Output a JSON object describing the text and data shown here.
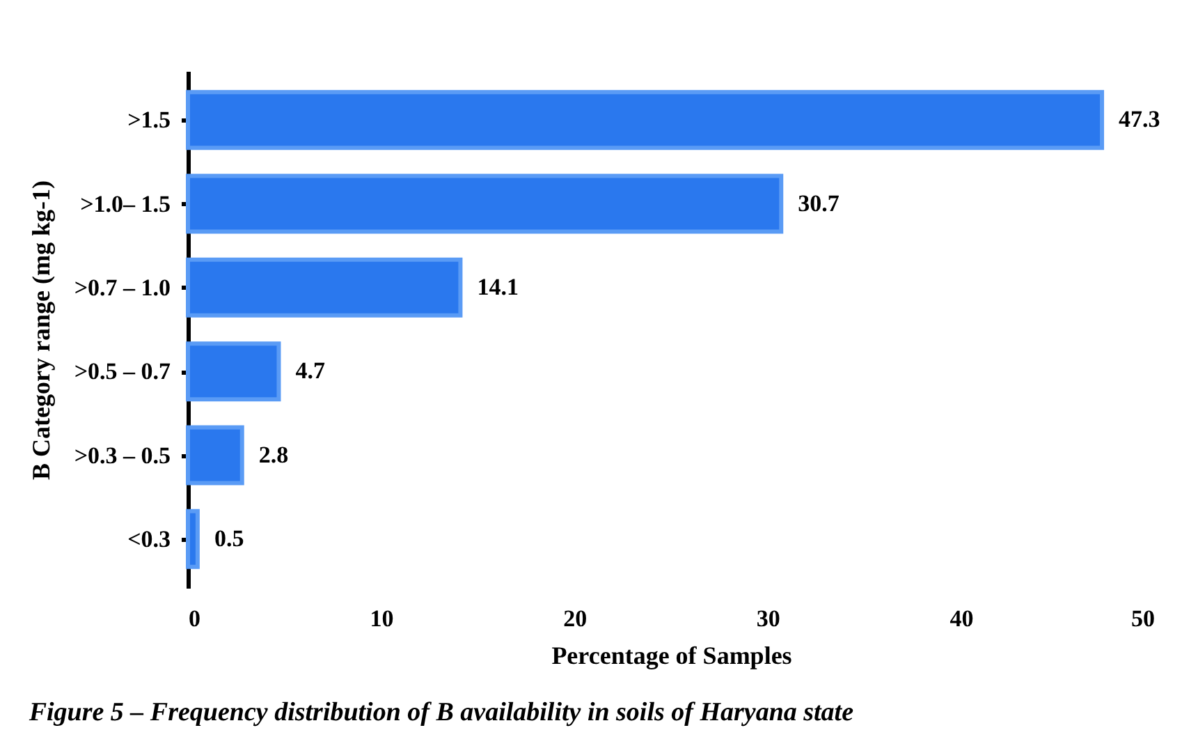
{
  "chart_data": {
    "type": "bar",
    "orientation": "horizontal",
    "categories": [
      ">1.5",
      ">1.0– 1.5",
      ">0.7 – 1.0",
      ">0.5 – 0.7",
      ">0.3 – 0.5",
      "<0.3"
    ],
    "values": [
      47.3,
      30.7,
      14.1,
      4.7,
      2.8,
      0.5
    ],
    "color": "#2a78ee",
    "xlim": [
      0,
      50
    ],
    "xticks": [
      0,
      10,
      20,
      30,
      40,
      50
    ],
    "xlabel": "Percentage of Samples",
    "ylabel": "B Category range (mg kg-1)",
    "data_labels": true,
    "grid": false,
    "annotations": [
      "Figure  5  – Frequency distribution of B availability in soils of Haryana state"
    ]
  }
}
